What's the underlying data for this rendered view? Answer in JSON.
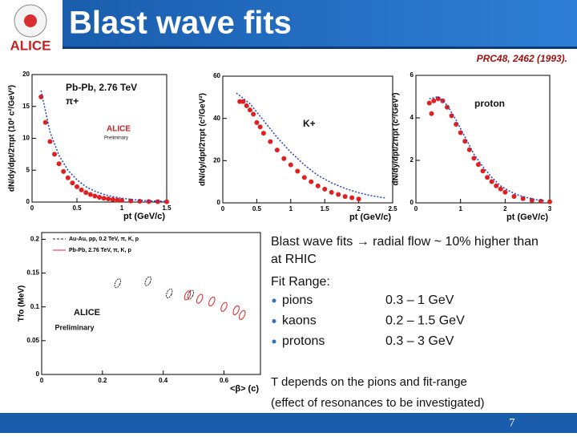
{
  "title": "Blast wave fits",
  "logo": "ALICE",
  "citation": "PRC48, 2462 (1993).",
  "chart_data": [
    {
      "type": "scatter",
      "ylabel": "dN/dy/dpt/2πpt (10² c²/GeV²)",
      "xlabel": "pt (GeV/c)",
      "annotations": [
        "Pb-Pb, 2.76 TeV",
        "π+",
        "ALICE",
        "Preliminary"
      ],
      "xlim": [
        0,
        1.5
      ],
      "xticks": [
        0,
        0.5,
        1,
        1.5
      ],
      "ylim": [
        0,
        20
      ],
      "yticks": [
        0,
        5,
        10,
        15,
        20
      ],
      "series": [
        {
          "color": "#e02020",
          "marker": "circle",
          "x": [
            0.1,
            0.15,
            0.2,
            0.25,
            0.3,
            0.35,
            0.4,
            0.45,
            0.5,
            0.55,
            0.6,
            0.65,
            0.7,
            0.75,
            0.8,
            0.85,
            0.9,
            0.95,
            1.0,
            1.1,
            1.2,
            1.3,
            1.4,
            1.5
          ],
          "values": [
            16.5,
            12.5,
            9.5,
            7.5,
            6,
            4.8,
            3.8,
            3,
            2.4,
            1.9,
            1.5,
            1.2,
            0.95,
            0.75,
            0.6,
            0.5,
            0.4,
            0.32,
            0.26,
            0.18,
            0.12,
            0.08,
            0.06,
            0.04
          ]
        },
        {
          "color": "#2040c0",
          "marker": "dotted-line",
          "x": [
            0.1,
            0.2,
            0.3,
            0.4,
            0.5,
            0.6,
            0.7,
            0.8,
            0.9,
            1.0,
            1.1,
            1.2,
            1.3,
            1.4,
            1.5
          ],
          "values": [
            17.5,
            11,
            7.3,
            5,
            3.5,
            2.4,
            1.7,
            1.2,
            0.85,
            0.6,
            0.42,
            0.3,
            0.2,
            0.15,
            0.1
          ]
        }
      ]
    },
    {
      "type": "scatter",
      "ylabel": "dN/dy/dpt/2πpt (c²/GeV²)",
      "xlabel": "pt (GeV/c)",
      "annotations": [
        "K+"
      ],
      "xlim": [
        0,
        2.5
      ],
      "xticks": [
        0,
        0.5,
        1,
        1.5,
        2,
        2.5
      ],
      "ylim": [
        0,
        60
      ],
      "yticks": [
        0,
        20,
        40,
        60
      ],
      "series": [
        {
          "color": "#e02020",
          "marker": "circle",
          "x": [
            0.25,
            0.3,
            0.35,
            0.4,
            0.45,
            0.5,
            0.55,
            0.6,
            0.7,
            0.8,
            0.9,
            1.0,
            1.1,
            1.2,
            1.3,
            1.4,
            1.5,
            1.6,
            1.7,
            1.8,
            1.9,
            2.0
          ],
          "values": [
            48,
            48,
            46,
            44,
            42,
            38,
            36,
            33,
            29,
            25,
            21,
            18,
            15,
            12,
            10,
            8,
            6.5,
            5,
            4,
            3,
            2.4,
            1.8
          ]
        },
        {
          "color": "#2040c0",
          "marker": "dotted-line",
          "x": [
            0.2,
            0.4,
            0.6,
            0.8,
            1.0,
            1.2,
            1.4,
            1.6,
            1.8,
            2.0,
            2.2,
            2.4
          ],
          "values": [
            52,
            47,
            39,
            31,
            24,
            18,
            13,
            9.5,
            6.8,
            4.8,
            3.3,
            2.3
          ]
        }
      ]
    },
    {
      "type": "scatter",
      "ylabel": "dN/dy/dpt/2πpt (c²/GeV²)",
      "xlabel": "pt (GeV/c)",
      "annotations": [
        "proton"
      ],
      "xlim": [
        0,
        3
      ],
      "xticks": [
        0,
        1,
        2,
        3
      ],
      "ylim": [
        0,
        6
      ],
      "yticks": [
        0,
        2,
        4,
        6
      ],
      "series": [
        {
          "color": "#e02020",
          "marker": "circle",
          "x": [
            0.3,
            0.35,
            0.4,
            0.5,
            0.6,
            0.7,
            0.8,
            0.9,
            1.0,
            1.1,
            1.2,
            1.3,
            1.4,
            1.5,
            1.6,
            1.7,
            1.8,
            1.9,
            2.0,
            2.2,
            2.4,
            2.6,
            2.8,
            3.0
          ],
          "values": [
            4.7,
            4.2,
            4.8,
            4.9,
            4.8,
            4.5,
            4.1,
            3.7,
            3.3,
            2.9,
            2.5,
            2.1,
            1.8,
            1.5,
            1.2,
            1.0,
            0.8,
            0.65,
            0.5,
            0.3,
            0.2,
            0.12,
            0.08,
            0.05
          ]
        },
        {
          "color": "#2040c0",
          "marker": "dotted-line",
          "x": [
            0.3,
            0.5,
            0.7,
            0.9,
            1.1,
            1.3,
            1.5,
            1.7,
            1.9,
            2.1,
            2.3,
            2.5,
            2.7,
            2.9
          ],
          "values": [
            4.9,
            5,
            4.6,
            3.9,
            3.1,
            2.3,
            1.7,
            1.2,
            0.8,
            0.55,
            0.36,
            0.24,
            0.15,
            0.1
          ]
        }
      ]
    },
    {
      "type": "scatter",
      "ylabel": "Tfo (MeV)",
      "xlabel": "<β> (c)",
      "annotations": [
        "ALICE",
        "Preliminary"
      ],
      "xlim": [
        0,
        0.72
      ],
      "xticks": [
        0,
        0.2,
        0.4,
        0.6
      ],
      "ylim": [
        0,
        0.21
      ],
      "yticks": [
        0,
        0.05,
        0.1,
        0.15,
        0.2
      ],
      "series": [
        {
          "name": "Au-Au, pp, 0.2 TeV, π, K, p",
          "color": "#222222",
          "marker": "contour",
          "x": [
            0.25,
            0.35,
            0.42,
            0.49
          ],
          "values": [
            0.135,
            0.138,
            0.12,
            0.118
          ]
        },
        {
          "name": "Pb-Pb, 2.76 TeV, π, K, p",
          "color": "#e02020",
          "marker": "contour",
          "x": [
            0.48,
            0.52,
            0.56,
            0.6,
            0.64,
            0.66
          ],
          "values": [
            0.117,
            0.112,
            0.108,
            0.1,
            0.095,
            0.088
          ]
        }
      ]
    }
  ],
  "text": {
    "lines": [
      "Blast wave fits → radial flow ~ 10% higher than",
      "at RHIC",
      "Fit Range:"
    ],
    "bullets": [
      [
        "pions",
        "0.3 – 1 GeV"
      ],
      [
        "kaons",
        "0.2 – 1.5 GeV"
      ],
      [
        "protons",
        "0.3 – 3 GeV"
      ]
    ],
    "notes": [
      "T depends on the pions and fit-range",
      "(effect of resonances to be investigated)"
    ]
  },
  "page_number": "7"
}
